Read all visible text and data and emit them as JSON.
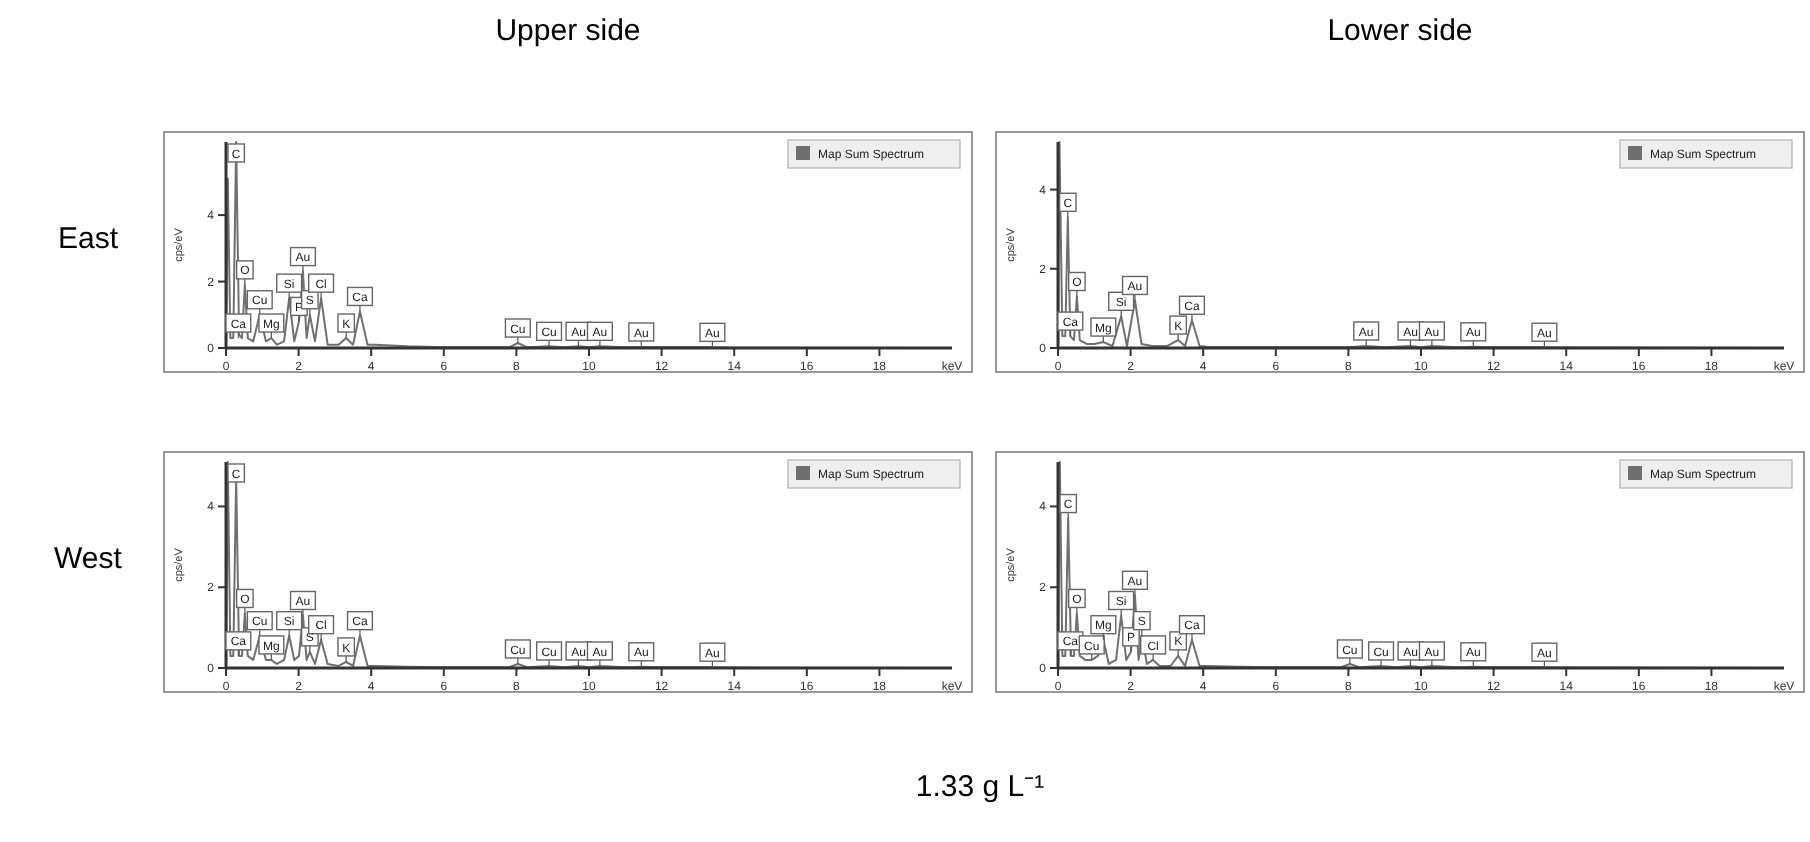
{
  "chart_data": [
    {
      "type": "line",
      "title": "Upper side",
      "xlabel": "keV",
      "ylabel": "cps/eV",
      "legend": "top right",
      "xlim": [
        0,
        20
      ],
      "ylim": [
        0,
        6.2
      ],
      "xticks": [
        0,
        2,
        4,
        6,
        8,
        10,
        12,
        14,
        16,
        18
      ],
      "yticks": [
        0,
        2,
        4
      ],
      "x": [
        0,
        0.05,
        0.12,
        0.2,
        0.28,
        0.36,
        0.44,
        0.52,
        0.6,
        0.75,
        0.93,
        1.1,
        1.25,
        1.4,
        1.6,
        1.74,
        1.88,
        2.01,
        2.12,
        2.22,
        2.31,
        2.45,
        2.62,
        2.8,
        3.1,
        3.31,
        3.5,
        3.69,
        3.9,
        4.1,
        5,
        6,
        7,
        7.8,
        8.04,
        8.3,
        8.9,
        9.3,
        9.71,
        10.0,
        10.3,
        11,
        11.44,
        12,
        13.4,
        14,
        20
      ],
      "series": [
        {
          "name": "Map Sum Spectrum",
          "color": "#707070",
          "values": [
            0,
            5.1,
            0.3,
            0.3,
            6.2,
            0.4,
            0.3,
            1.9,
            0.3,
            0.2,
            1.0,
            0.2,
            0.3,
            0.1,
            0.2,
            1.5,
            0.2,
            0.8,
            2.3,
            0.3,
            1.0,
            0.2,
            1.5,
            0.1,
            0.1,
            0.3,
            0.1,
            1.1,
            0.1,
            0.1,
            0.05,
            0.02,
            0.02,
            0.02,
            0.15,
            0.02,
            0.05,
            0.02,
            0.05,
            0.02,
            0.05,
            0.02,
            0.03,
            0.02,
            0.02,
            0.01,
            0
          ]
        }
      ],
      "annotations": [
        "East",
        {
          "text": "C",
          "x": 0.28,
          "y": 6.2
        },
        {
          "text": "O",
          "x": 0.52,
          "y": 1.9
        },
        {
          "text": "Ca",
          "x": 0.34,
          "y": 0.3
        },
        {
          "text": "Cu",
          "x": 0.93,
          "y": 1.0
        },
        {
          "text": "Mg",
          "x": 1.25,
          "y": 0.3
        },
        {
          "text": "Si",
          "x": 1.74,
          "y": 1.5
        },
        {
          "text": "P",
          "x": 2.01,
          "y": 0.8
        },
        {
          "text": "Au",
          "x": 2.12,
          "y": 2.3
        },
        {
          "text": "S",
          "x": 2.31,
          "y": 1.0
        },
        {
          "text": "Cl",
          "x": 2.62,
          "y": 1.5
        },
        {
          "text": "K",
          "x": 3.31,
          "y": 0.3
        },
        {
          "text": "Ca",
          "x": 3.69,
          "y": 1.1
        },
        {
          "text": "Cu",
          "x": 8.04,
          "y": 0.15
        },
        {
          "text": "Cu",
          "x": 8.9,
          "y": 0.05
        },
        {
          "text": "Au",
          "x": 9.71,
          "y": 0.05
        },
        {
          "text": "Au",
          "x": 10.3,
          "y": 0.05
        },
        {
          "text": "Au",
          "x": 11.44,
          "y": 0.03
        },
        {
          "text": "Au",
          "x": 13.4,
          "y": 0.02
        }
      ]
    },
    {
      "type": "line",
      "title": "Lower side",
      "xlabel": "keV",
      "ylabel": "cps/eV",
      "legend": "top right",
      "xlim": [
        0,
        20
      ],
      "ylim": [
        0,
        5.2
      ],
      "xticks": [
        0,
        2,
        4,
        6,
        8,
        10,
        12,
        14,
        16,
        18
      ],
      "yticks": [
        0,
        2,
        4
      ],
      "x": [
        0,
        0.04,
        0.12,
        0.2,
        0.27,
        0.34,
        0.44,
        0.52,
        0.6,
        0.8,
        1.0,
        1.25,
        1.5,
        1.74,
        1.9,
        2.12,
        2.3,
        2.6,
        3.0,
        3.31,
        3.5,
        3.69,
        3.9,
        4.2,
        6,
        8,
        8.49,
        9,
        9.71,
        10.0,
        10.3,
        11,
        11.44,
        12,
        13.4,
        14,
        20
      ],
      "series": [
        {
          "name": "Map Sum Spectrum",
          "color": "#707070",
          "values": [
            0,
            5.2,
            0.3,
            0.3,
            3.3,
            0.3,
            0.2,
            1.3,
            0.2,
            0.1,
            0.1,
            0.15,
            0.05,
            0.8,
            0.05,
            1.2,
            0.1,
            0.05,
            0.05,
            0.2,
            0.05,
            0.7,
            0.05,
            0.02,
            0.02,
            0.02,
            0.05,
            0.02,
            0.05,
            0.02,
            0.05,
            0.02,
            0.03,
            0.02,
            0.02,
            0.01,
            0
          ]
        }
      ],
      "annotations": [
        {
          "text": "C",
          "x": 0.27,
          "y": 3.3
        },
        {
          "text": "O",
          "x": 0.52,
          "y": 1.3
        },
        {
          "text": "Ca",
          "x": 0.34,
          "y": 0.3
        },
        {
          "text": "Mg",
          "x": 1.25,
          "y": 0.15
        },
        {
          "text": "Si",
          "x": 1.74,
          "y": 0.8
        },
        {
          "text": "Au",
          "x": 2.12,
          "y": 1.2
        },
        {
          "text": "K",
          "x": 3.31,
          "y": 0.2
        },
        {
          "text": "Ca",
          "x": 3.69,
          "y": 0.7
        },
        {
          "text": "Au",
          "x": 8.49,
          "y": 0.05
        },
        {
          "text": "Au",
          "x": 9.71,
          "y": 0.05
        },
        {
          "text": "Au",
          "x": 10.3,
          "y": 0.05
        },
        {
          "text": "Au",
          "x": 11.44,
          "y": 0.03
        },
        {
          "text": "Au",
          "x": 13.4,
          "y": 0.02
        }
      ]
    },
    {
      "type": "line",
      "xlabel": "keV",
      "ylabel": "cps/eV",
      "legend": "top right",
      "xlim": [
        0,
        20
      ],
      "ylim": [
        0,
        5.1
      ],
      "xticks": [
        0,
        2,
        4,
        6,
        8,
        10,
        12,
        14,
        16,
        18
      ],
      "yticks": [
        0,
        2,
        4
      ],
      "x": [
        0,
        0.05,
        0.12,
        0.2,
        0.28,
        0.36,
        0.44,
        0.52,
        0.6,
        0.75,
        0.93,
        1.1,
        1.25,
        1.4,
        1.6,
        1.74,
        1.88,
        2.01,
        2.12,
        2.22,
        2.31,
        2.45,
        2.62,
        2.8,
        3.1,
        3.31,
        3.5,
        3.69,
        3.9,
        4.1,
        5,
        6,
        7,
        7.8,
        8.04,
        8.3,
        8.9,
        9.3,
        9.71,
        10.0,
        10.3,
        11,
        11.44,
        12,
        13.4,
        14,
        20
      ],
      "series": [
        {
          "name": "Map Sum Spectrum",
          "color": "#707070",
          "values": [
            0,
            5.1,
            0.3,
            0.3,
            4.7,
            0.3,
            0.3,
            1.35,
            0.3,
            0.2,
            0.8,
            0.2,
            0.2,
            0.1,
            0.2,
            0.8,
            0.2,
            0.3,
            1.3,
            0.2,
            0.4,
            0.1,
            0.7,
            0.1,
            0.05,
            0.15,
            0.05,
            0.8,
            0.05,
            0.05,
            0.03,
            0.02,
            0.02,
            0.02,
            0.1,
            0.02,
            0.05,
            0.02,
            0.05,
            0.02,
            0.05,
            0.02,
            0.03,
            0.02,
            0.02,
            0.01,
            0
          ]
        }
      ],
      "annotations": [
        "West",
        {
          "text": "C",
          "x": 0.28,
          "y": 4.7
        },
        {
          "text": "O",
          "x": 0.52,
          "y": 1.35
        },
        {
          "text": "Ca",
          "x": 0.34,
          "y": 0.3
        },
        {
          "text": "Cu",
          "x": 0.93,
          "y": 0.8
        },
        {
          "text": "Mg",
          "x": 1.25,
          "y": 0.2
        },
        {
          "text": "Si",
          "x": 1.74,
          "y": 0.8
        },
        {
          "text": "Au",
          "x": 2.12,
          "y": 1.3
        },
        {
          "text": "S",
          "x": 2.31,
          "y": 0.4
        },
        {
          "text": "Cl",
          "x": 2.62,
          "y": 0.7
        },
        {
          "text": "K",
          "x": 3.31,
          "y": 0.15
        },
        {
          "text": "Ca",
          "x": 3.69,
          "y": 0.8
        },
        {
          "text": "Cu",
          "x": 8.04,
          "y": 0.1
        },
        {
          "text": "Cu",
          "x": 8.9,
          "y": 0.05
        },
        {
          "text": "Au",
          "x": 9.71,
          "y": 0.05
        },
        {
          "text": "Au",
          "x": 10.3,
          "y": 0.05
        },
        {
          "text": "Au",
          "x": 11.44,
          "y": 0.03
        },
        {
          "text": "Au",
          "x": 13.4,
          "y": 0.02
        }
      ]
    },
    {
      "type": "line",
      "xlabel": "keV",
      "ylabel": "cps/eV",
      "legend": "top right",
      "xlim": [
        0,
        20
      ],
      "ylim": [
        0,
        5.1
      ],
      "xticks": [
        0,
        2,
        4,
        6,
        8,
        10,
        12,
        14,
        16,
        18
      ],
      "yticks": [
        0,
        2,
        4
      ],
      "x": [
        0,
        0.05,
        0.12,
        0.2,
        0.28,
        0.36,
        0.44,
        0.52,
        0.6,
        0.75,
        0.93,
        1.1,
        1.25,
        1.4,
        1.6,
        1.74,
        1.88,
        2.01,
        2.12,
        2.22,
        2.31,
        2.45,
        2.62,
        2.8,
        3.1,
        3.31,
        3.5,
        3.69,
        3.9,
        4.1,
        5,
        6,
        7,
        7.8,
        8.04,
        8.3,
        8.9,
        9.3,
        9.71,
        10.0,
        10.3,
        11,
        11.44,
        12,
        13.4,
        14,
        20
      ],
      "series": [
        {
          "name": "Map Sum Spectrum",
          "color": "#707070",
          "values": [
            0,
            5.1,
            0.3,
            0.3,
            3.7,
            0.3,
            0.3,
            1.35,
            0.3,
            0.2,
            0.2,
            0.3,
            0.7,
            0.1,
            0.2,
            1.3,
            0.2,
            0.4,
            1.8,
            0.2,
            0.8,
            0.1,
            0.2,
            0.05,
            0.05,
            0.3,
            0.05,
            0.7,
            0.05,
            0.05,
            0.03,
            0.02,
            0.02,
            0.02,
            0.1,
            0.02,
            0.05,
            0.02,
            0.05,
            0.02,
            0.05,
            0.02,
            0.03,
            0.02,
            0.02,
            0.01,
            0
          ]
        }
      ],
      "annotations": [
        "1.33 g L⁻¹",
        {
          "text": "C",
          "x": 0.28,
          "y": 3.7
        },
        {
          "text": "O",
          "x": 0.52,
          "y": 1.35
        },
        {
          "text": "Ca",
          "x": 0.34,
          "y": 0.3
        },
        {
          "text": "Cu",
          "x": 0.93,
          "y": 0.2
        },
        {
          "text": "Mg",
          "x": 1.25,
          "y": 0.7
        },
        {
          "text": "Si",
          "x": 1.74,
          "y": 1.3
        },
        {
          "text": "P",
          "x": 2.01,
          "y": 0.4
        },
        {
          "text": "Au",
          "x": 2.12,
          "y": 1.8
        },
        {
          "text": "S",
          "x": 2.31,
          "y": 0.8
        },
        {
          "text": "Cl",
          "x": 2.62,
          "y": 0.2
        },
        {
          "text": "K",
          "x": 3.31,
          "y": 0.3
        },
        {
          "text": "Ca",
          "x": 3.69,
          "y": 0.7
        },
        {
          "text": "Cu",
          "x": 8.04,
          "y": 0.1
        },
        {
          "text": "Cu",
          "x": 8.9,
          "y": 0.05
        },
        {
          "text": "Au",
          "x": 9.71,
          "y": 0.05
        },
        {
          "text": "Au",
          "x": 10.3,
          "y": 0.05
        },
        {
          "text": "Au",
          "x": 11.44,
          "y": 0.03
        },
        {
          "text": "Au",
          "x": 13.4,
          "y": 0.02
        }
      ]
    }
  ]
}
